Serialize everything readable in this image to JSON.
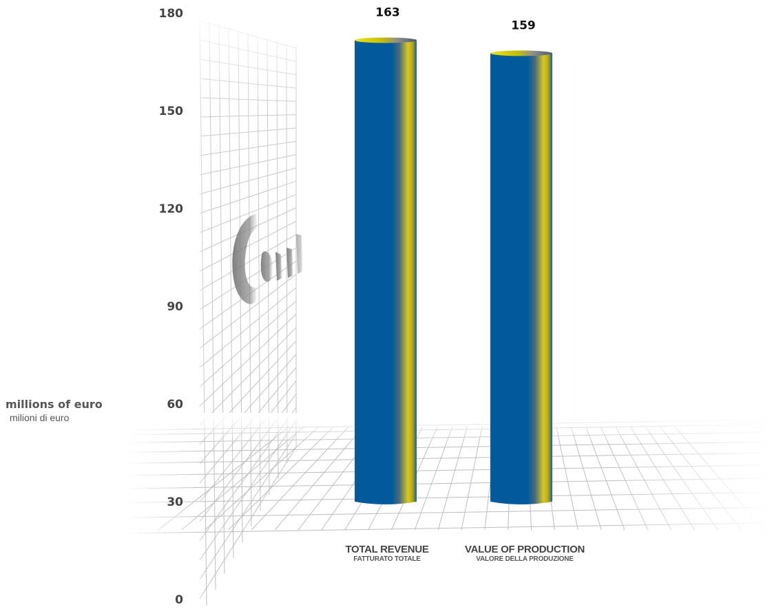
{
  "chart_data": {
    "type": "bar",
    "ylabel": "millions of euro",
    "ylabel_sub": "milioni di euro",
    "yticks": [
      0,
      30,
      60,
      90,
      120,
      150,
      180
    ],
    "ylim": [
      0,
      180
    ],
    "categories": [
      {
        "label": "TOTAL REVENUE",
        "sublabel": "FATTURATO TOTALE"
      },
      {
        "label": "VALUE OF PRODUCTION",
        "sublabel": "VALORE DELLA PRODUZIONE"
      }
    ],
    "values": [
      163,
      159
    ],
    "data_labels": [
      "163",
      "159"
    ],
    "colors": {
      "bar": "#005a9c",
      "highlight": "#d4c21a",
      "grid": "#bdbdbd"
    },
    "grid": true
  },
  "watermark": {
    "icon": "company-logo-watermark"
  }
}
